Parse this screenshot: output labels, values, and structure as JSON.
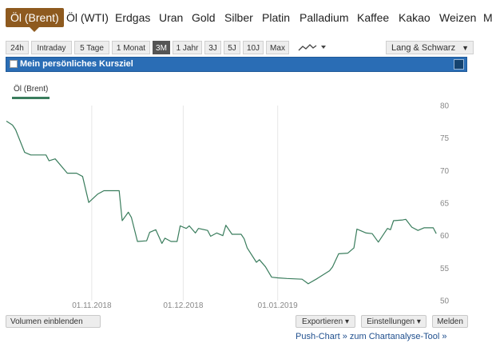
{
  "tabs": [
    {
      "label": "Öl (Brent)",
      "active": true
    },
    {
      "label": "Öl (WTI)"
    },
    {
      "label": "Erdgas"
    },
    {
      "label": "Uran"
    },
    {
      "label": "Gold"
    },
    {
      "label": "Silber"
    },
    {
      "label": "Platin"
    },
    {
      "label": "Palladium"
    },
    {
      "label": "Kaffee"
    },
    {
      "label": "Kakao"
    },
    {
      "label": "Weizen"
    },
    {
      "label": "M"
    }
  ],
  "toolbar": {
    "ranges": [
      "24h",
      "Intraday",
      "5 Tage",
      "1 Monat",
      "3M",
      "1 Jahr",
      "3J",
      "5J",
      "10J",
      "Max"
    ],
    "active_range": "3M",
    "chart_type_icon": "line-chart-icon",
    "exchange": "Lang & Schwarz"
  },
  "banner": {
    "title": "Mein persönliches Kursziel"
  },
  "legend": {
    "name": "Öl (Brent)"
  },
  "colors": {
    "line": "#3a7d5d",
    "tab_active": "#8e5a1f",
    "banner": "#2a6db5",
    "link": "#1f4f8e"
  },
  "chart_data": {
    "type": "line",
    "series": [
      {
        "name": "Öl (Brent)",
        "points": [
          [
            "2018-10-04",
            77.6
          ],
          [
            "2018-10-06",
            77.0
          ],
          [
            "2018-10-07",
            76.3
          ],
          [
            "2018-10-10",
            72.8
          ],
          [
            "2018-10-12",
            72.4
          ],
          [
            "2018-10-14",
            72.4
          ],
          [
            "2018-10-17",
            72.4
          ],
          [
            "2018-10-18",
            71.5
          ],
          [
            "2018-10-20",
            71.8
          ],
          [
            "2018-10-24",
            69.6
          ],
          [
            "2018-10-27",
            69.6
          ],
          [
            "2018-10-29",
            69.1
          ],
          [
            "2018-10-31",
            65.1
          ],
          [
            "2018-11-03",
            66.4
          ],
          [
            "2018-11-05",
            66.9
          ],
          [
            "2018-11-08",
            66.9
          ],
          [
            "2018-11-10",
            66.9
          ],
          [
            "2018-11-11",
            62.3
          ],
          [
            "2018-11-13",
            63.6
          ],
          [
            "2018-11-14",
            62.8
          ],
          [
            "2018-11-16",
            59.1
          ],
          [
            "2018-11-19",
            59.2
          ],
          [
            "2018-11-20",
            60.5
          ],
          [
            "2018-11-22",
            60.9
          ],
          [
            "2018-11-24",
            58.8
          ],
          [
            "2018-11-25",
            59.6
          ],
          [
            "2018-11-27",
            59.1
          ],
          [
            "2018-11-29",
            59.1
          ],
          [
            "2018-11-30",
            61.5
          ],
          [
            "2018-12-02",
            61.1
          ],
          [
            "2018-12-03",
            61.5
          ],
          [
            "2018-12-05",
            60.4
          ],
          [
            "2018-12-06",
            61.1
          ],
          [
            "2018-12-09",
            60.8
          ],
          [
            "2018-12-10",
            59.9
          ],
          [
            "2018-12-12",
            60.4
          ],
          [
            "2018-12-14",
            60.0
          ],
          [
            "2018-12-15",
            61.6
          ],
          [
            "2018-12-17",
            60.2
          ],
          [
            "2018-12-20",
            60.2
          ],
          [
            "2018-12-21",
            59.5
          ],
          [
            "2018-12-22",
            58.1
          ],
          [
            "2018-12-25",
            55.9
          ],
          [
            "2018-12-26",
            56.3
          ],
          [
            "2018-12-28",
            55.2
          ],
          [
            "2018-12-30",
            53.6
          ],
          [
            "2019-01-01",
            53.5
          ],
          [
            "2019-01-04",
            53.4
          ],
          [
            "2019-01-09",
            53.3
          ],
          [
            "2019-01-11",
            52.6
          ],
          [
            "2019-01-14",
            53.4
          ],
          [
            "2019-01-18",
            54.6
          ],
          [
            "2019-01-19",
            55.2
          ],
          [
            "2019-01-21",
            57.2
          ],
          [
            "2019-01-24",
            57.3
          ],
          [
            "2019-01-26",
            58.1
          ],
          [
            "2019-01-27",
            61.0
          ],
          [
            "2019-01-28",
            60.8
          ],
          [
            "2019-01-30",
            60.4
          ],
          [
            "2019-02-01",
            60.3
          ],
          [
            "2019-02-03",
            59.0
          ],
          [
            "2019-02-06",
            61.1
          ],
          [
            "2019-02-07",
            60.9
          ],
          [
            "2019-02-08",
            62.3
          ],
          [
            "2019-02-11",
            62.4
          ],
          [
            "2019-02-12",
            62.5
          ],
          [
            "2019-02-14",
            61.3
          ],
          [
            "2019-02-16",
            60.8
          ],
          [
            "2019-02-18",
            61.2
          ],
          [
            "2019-02-21",
            61.2
          ],
          [
            "2019-02-22",
            60.3
          ]
        ]
      }
    ],
    "xlim": [
      "2018-10-04",
      "2019-02-23"
    ],
    "ylim": [
      50,
      80
    ],
    "y_ticks": [
      50,
      55,
      60,
      65,
      70,
      75,
      80
    ],
    "x_ticks": [
      {
        "date": "2018-11-01",
        "label": "01.11.2018"
      },
      {
        "date": "2018-12-01",
        "label": "01.12.2018"
      },
      {
        "date": "2019-01-01",
        "label": "01.01.2019"
      }
    ],
    "grid": "vertical",
    "y_axis_side": "right"
  },
  "footer": {
    "volume_label": "Volumen einblenden",
    "export_label": "Exportieren ▾",
    "settings_label": "Einstellungen ▾",
    "report_label": "Melden",
    "push_link": "Push-Chart » zum Chartanalyse-Tool »"
  }
}
